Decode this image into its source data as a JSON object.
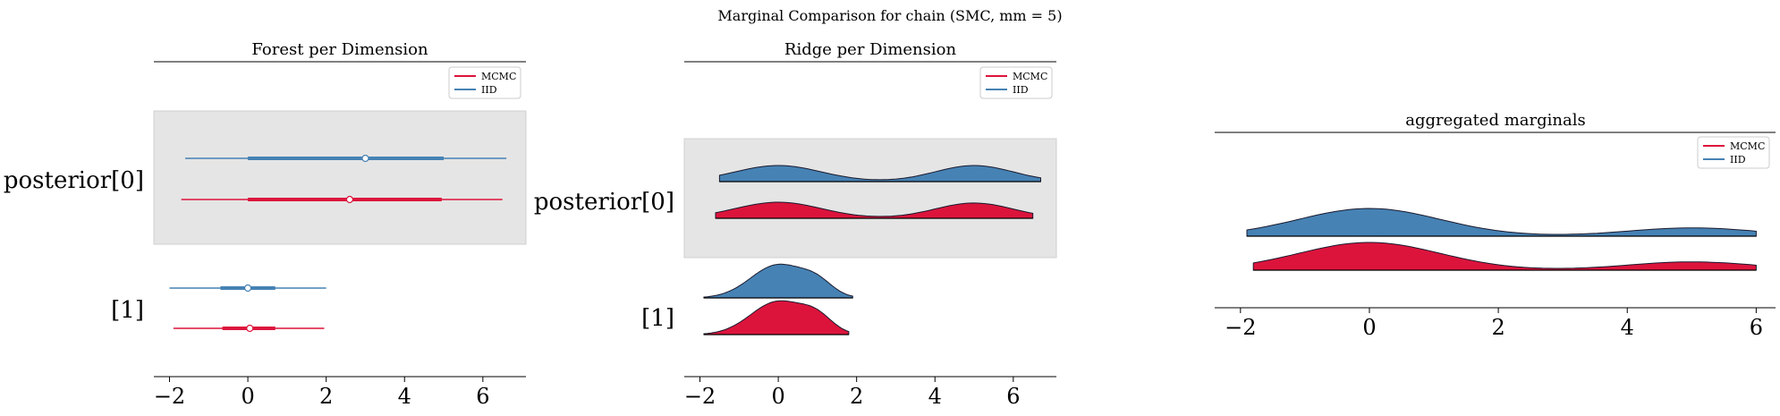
{
  "suptitle": "Marginal Comparison for chain (SMC, mm = 5)",
  "colors": {
    "mcmc": "#dc143c",
    "iid": "#4682b4",
    "shade": "#e5e5e5"
  },
  "chart_data": [
    {
      "type": "forest",
      "title": "Forest per Dimension",
      "xlim": [
        -2.4,
        7.1
      ],
      "xticks": [
        -2,
        0,
        2,
        4,
        6
      ],
      "xticklabels": [
        "−2",
        "0",
        "2",
        "4",
        "6"
      ],
      "legend": {
        "placement": "top-right",
        "entries": [
          "MCMC",
          "IID"
        ]
      },
      "rows": [
        {
          "label": "posterior[0]",
          "shaded": true,
          "series": [
            {
              "name": "IID",
              "low": -1.6,
              "q1": 0.0,
              "median": 3.0,
              "q3": 5.0,
              "high": 6.6
            },
            {
              "name": "MCMC",
              "low": -1.7,
              "q1": 0.0,
              "median": 2.6,
              "q3": 4.95,
              "high": 6.5
            }
          ]
        },
        {
          "label": "[1]",
          "shaded": false,
          "series": [
            {
              "name": "IID",
              "low": -2.0,
              "q1": -0.7,
              "median": 0.0,
              "q3": 0.7,
              "high": 2.0
            },
            {
              "name": "MCMC",
              "low": -1.9,
              "q1": -0.65,
              "median": 0.05,
              "q3": 0.7,
              "high": 1.95
            }
          ]
        }
      ]
    },
    {
      "type": "ridge",
      "title": "Ridge per Dimension",
      "xlim": [
        -2.4,
        7.1
      ],
      "xticks": [
        -2,
        0,
        2,
        4,
        6
      ],
      "xticklabels": [
        "−2",
        "0",
        "2",
        "4",
        "6"
      ],
      "legend": {
        "placement": "top-right",
        "entries": [
          "MCMC",
          "IID"
        ]
      },
      "rows": [
        {
          "label": "posterior[0]",
          "shaded": true,
          "series": [
            {
              "name": "IID",
              "range": [
                -1.5,
                6.7
              ],
              "peaks": [
                [
                  0.0,
                  1.0,
                  1.1
                ],
                [
                  5.0,
                  1.0,
                  1.0
                ]
              ]
            },
            {
              "name": "MCMC",
              "range": [
                -1.6,
                6.5
              ],
              "peaks": [
                [
                  0.0,
                  1.0,
                  1.1
                ],
                [
                  5.0,
                  0.95,
                  1.0
                ]
              ]
            }
          ]
        },
        {
          "label": "[1]",
          "shaded": false,
          "series": [
            {
              "name": "IID",
              "range": [
                -1.9,
                1.9
              ],
              "peaks": [
                [
                  0.0,
                  1.0,
                  0.7
                ],
                [
                  1.0,
                  0.35,
                  0.4
                ]
              ]
            },
            {
              "name": "MCMC",
              "range": [
                -1.9,
                1.8
              ],
              "peaks": [
                [
                  0.0,
                  1.0,
                  0.7
                ],
                [
                  1.0,
                  0.4,
                  0.4
                ]
              ]
            }
          ]
        }
      ]
    },
    {
      "type": "ridge-aggregated",
      "title": "aggregated marginals",
      "xlim": [
        -2.4,
        6.3
      ],
      "xticks": [
        -2,
        0,
        2,
        4,
        6
      ],
      "xticklabels": [
        "−2",
        "0",
        "2",
        "4",
        "6"
      ],
      "legend": {
        "placement": "top-right",
        "entries": [
          "MCMC",
          "IID"
        ]
      },
      "series": [
        {
          "name": "IID",
          "range": [
            -1.9,
            6.0
          ],
          "peaks": [
            [
              0.0,
              1.0,
              1.1
            ],
            [
              5.0,
              0.3,
              1.0
            ]
          ]
        },
        {
          "name": "MCMC",
          "range": [
            -1.8,
            6.0
          ],
          "peaks": [
            [
              0.0,
              1.0,
              1.1
            ],
            [
              5.0,
              0.3,
              1.0
            ]
          ]
        }
      ]
    }
  ]
}
